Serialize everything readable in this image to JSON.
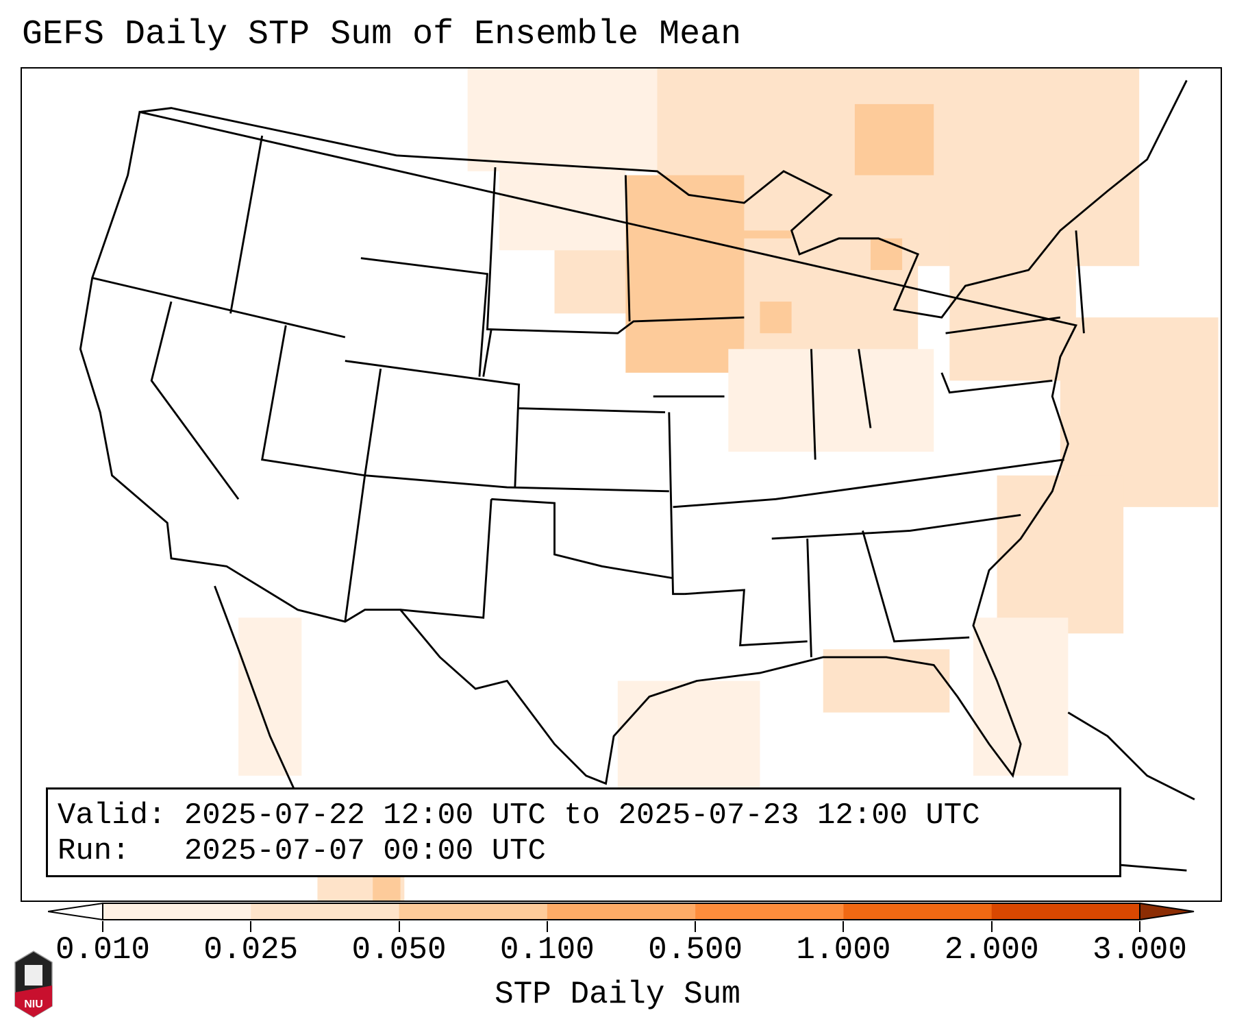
{
  "title": "GEFS Daily STP Sum of Ensemble Mean",
  "info": {
    "valid_line": "Valid: 2025-07-22 12:00 UTC to 2025-07-23 12:00 UTC",
    "run_line": "Run:   2025-07-07 00:00 UTC"
  },
  "colorbar": {
    "label": "STP Daily Sum",
    "ticks": [
      "0.010",
      "0.025",
      "0.050",
      "0.100",
      "0.500",
      "1.000",
      "2.000",
      "3.000"
    ],
    "under_color": "#ffffff",
    "colors": [
      "#fff1e4",
      "#fee3c9",
      "#fdcb9a",
      "#fdab67",
      "#fd8d3c",
      "#f06913",
      "#d94801"
    ],
    "over_color": "#8c2d04"
  },
  "logo": {
    "text": "NIU"
  }
}
